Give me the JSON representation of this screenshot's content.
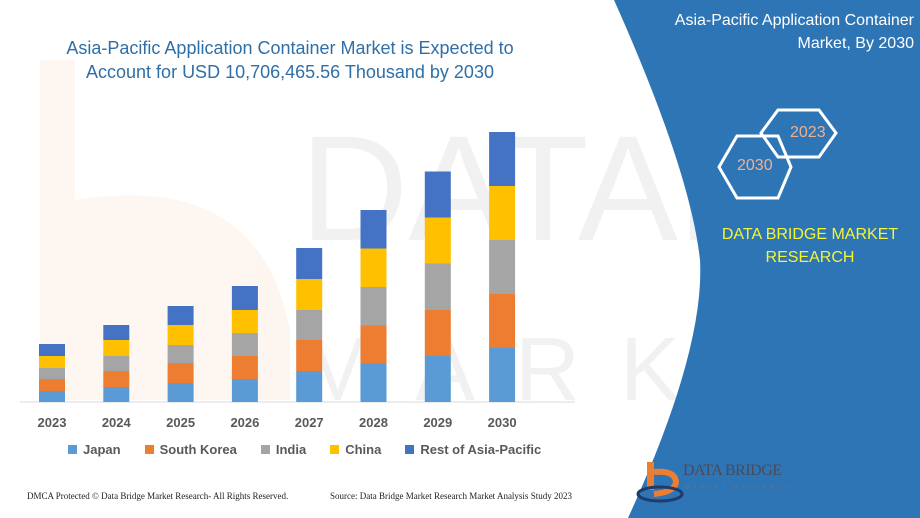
{
  "header": {
    "title_line1": "Asia-Pacific Application Container Market is Expected to",
    "title_line2": "Account for USD 10,706,465.56 Thousand by 2030"
  },
  "side_panel": {
    "title_line1": "Asia-Pacific Application Container",
    "title_line2": "Market, By 2030",
    "hex_years": [
      "2023",
      "2030"
    ],
    "brand_line1": "DATA BRIDGE MARKET",
    "brand_line2": "RESEARCH",
    "logo_text": "DATA BRIDGE",
    "logo_subtext": "MARKET RESEARCH",
    "panel_color": "#2e75b6"
  },
  "footer": {
    "left": "DMCA Protected © Data Bridge Market Research- All Rights Reserved.",
    "right": "Source: Data Bridge Market Research Market Analysis Study 2023"
  },
  "chart_data": {
    "type": "bar",
    "stacked": true,
    "title": "Asia-Pacific Application Container Market is Expected to Account for USD 10,706,465.56 Thousand by 2030",
    "xlabel": "",
    "ylabel": "",
    "y_axis_shown": false,
    "grid": false,
    "legend_position": "bottom",
    "categories": [
      "2023",
      "2024",
      "2025",
      "2026",
      "2027",
      "2028",
      "2029",
      "2030"
    ],
    "series": [
      {
        "name": "Japan",
        "color": "#5b9bd5",
        "values": [
          11,
          15,
          19,
          23,
          31,
          38.5,
          46,
          54
        ]
      },
      {
        "name": "South Korea",
        "color": "#ed7d31",
        "values": [
          12,
          16,
          20,
          23,
          31,
          38,
          46,
          54
        ]
      },
      {
        "name": "India",
        "color": "#a5a5a5",
        "values": [
          11,
          15,
          18,
          23,
          30,
          38.5,
          46.5,
          54
        ]
      },
      {
        "name": "China",
        "color": "#ffc000",
        "values": [
          12,
          16,
          20,
          23,
          31,
          38.5,
          46,
          54
        ]
      },
      {
        "name": "Rest of Asia-Pacific",
        "color": "#4472c4",
        "values": [
          12,
          15,
          19,
          24,
          31,
          38.5,
          46,
          54
        ]
      }
    ]
  }
}
